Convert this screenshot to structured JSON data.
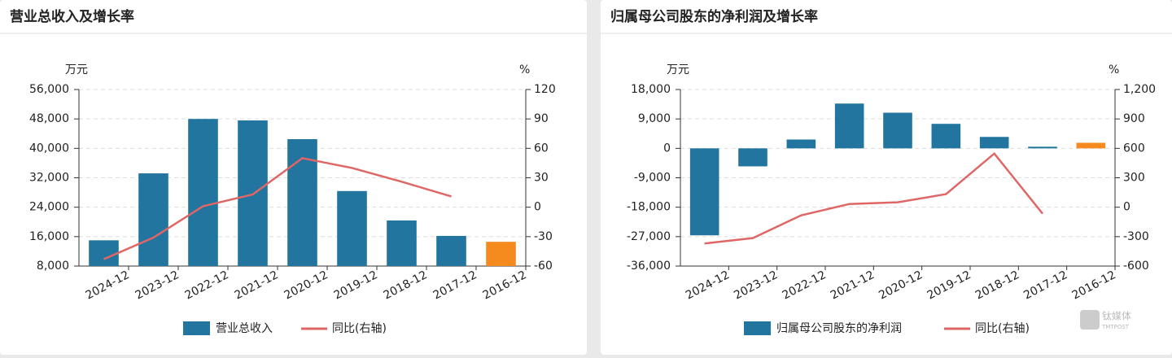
{
  "chart_data": [
    {
      "type": "bar",
      "title": "营业总收入及增长率",
      "y_unit": "万元",
      "y2_unit": "%",
      "categories": [
        "2024-12",
        "2023-12",
        "2022-12",
        "2021-12",
        "2020-12",
        "2019-12",
        "2018-12",
        "2017-12",
        "2016-12"
      ],
      "series": [
        {
          "name": "营业总收入",
          "type": "bar",
          "color": "#21759f",
          "colors": [
            "#21759f",
            "#21759f",
            "#21759f",
            "#21759f",
            "#21759f",
            "#21759f",
            "#21759f",
            "#21759f",
            "#f58b1f"
          ],
          "values": [
            15000,
            33200,
            48000,
            47600,
            42500,
            28400,
            20400,
            16200,
            14600
          ]
        },
        {
          "name": "同比(右轴)",
          "type": "line",
          "axis": "y2",
          "color": "#e06666",
          "values": [
            -53,
            -31,
            1,
            13,
            50,
            40,
            26,
            11,
            null
          ]
        }
      ],
      "ylim": [
        8000,
        56000
      ],
      "yticks": [
        {
          "value": 8000,
          "label": "8,000"
        },
        {
          "value": 16000,
          "label": "16,000"
        },
        {
          "value": 24000,
          "label": "24,000"
        },
        {
          "value": 32000,
          "label": "32,000"
        },
        {
          "value": 40000,
          "label": "40,000"
        },
        {
          "value": 48000,
          "label": "48,000"
        },
        {
          "value": 56000,
          "label": "56,000"
        }
      ],
      "y2lim": [
        -60,
        120
      ],
      "y2ticks": [
        -60,
        -30,
        0,
        30,
        60,
        90,
        120
      ],
      "grid": true
    },
    {
      "type": "bar",
      "title": "归属母公司股东的净利润及增长率",
      "y_unit": "万元",
      "y2_unit": "%",
      "categories": [
        "2024-12",
        "2023-12",
        "2022-12",
        "2021-12",
        "2020-12",
        "2019-12",
        "2018-12",
        "2017-12",
        "2016-12"
      ],
      "series": [
        {
          "name": "归属母公司股东的净利润",
          "type": "bar",
          "color": "#21759f",
          "colors": [
            "#21759f",
            "#21759f",
            "#21759f",
            "#21759f",
            "#21759f",
            "#21759f",
            "#21759f",
            "#21759f",
            "#f58b1f"
          ],
          "values": [
            -26600,
            -5500,
            2700,
            13700,
            10900,
            7500,
            3500,
            500,
            1700
          ]
        },
        {
          "name": "同比(右轴)",
          "type": "line",
          "axis": "y2",
          "color": "#e06666",
          "values": [
            -370,
            -315,
            -83,
            33,
            50,
            133,
            547,
            -66,
            null
          ]
        }
      ],
      "ylim": [
        -36000,
        18000
      ],
      "yticks": [
        {
          "value": -36000,
          "label": "-36,000"
        },
        {
          "value": -27000,
          "label": "-27,000"
        },
        {
          "value": -18000,
          "label": "-18,000"
        },
        {
          "value": -9000,
          "label": "-9,000"
        },
        0,
        {
          "value": 9000,
          "label": "9,000"
        },
        {
          "value": 18000,
          "label": "18,000"
        }
      ],
      "y2lim": [
        -600,
        1200
      ],
      "y2ticks": [
        -600,
        -300,
        0,
        300,
        600,
        900,
        {
          "value": 1200,
          "label": "1,200"
        }
      ],
      "grid": true
    }
  ],
  "watermark": {
    "brand": "钛媒体",
    "sub": "TMTPOST"
  }
}
